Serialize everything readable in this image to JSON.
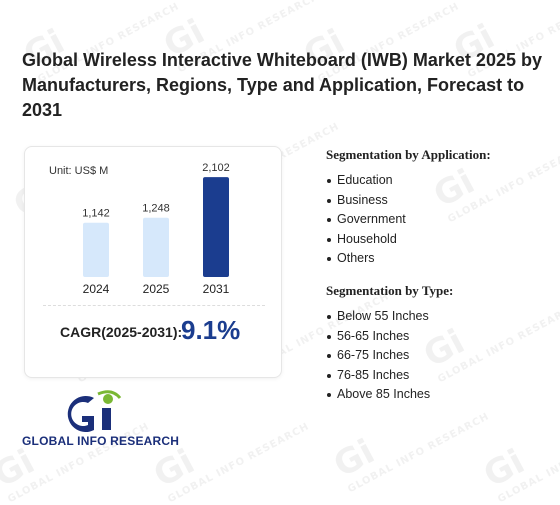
{
  "title": "Global Wireless Interactive Whiteboard (IWB) Market 2025 by Manufacturers, Regions, Type and Application, Forecast to 2031",
  "chart_card": {
    "unit_label": "Unit: US$ M",
    "cagr_label": "CAGR(2025-2031):",
    "cagr_value": "9.1%"
  },
  "chart_data": {
    "type": "bar",
    "categories": [
      "2024",
      "2025",
      "2031"
    ],
    "values": [
      1142,
      1248,
      2102
    ],
    "value_labels": [
      "1,142",
      "1,248",
      "2,102"
    ],
    "title": "",
    "xlabel": "",
    "ylabel": "",
    "ylim": [
      0,
      2400
    ],
    "grid": false,
    "bar_colors": [
      "#d6e8fb",
      "#d6e8fb",
      "#1b3d8f"
    ]
  },
  "segmentation_application": {
    "heading": "Segmentation by Application:",
    "items": [
      "Education",
      "Business",
      "Government",
      "Household",
      "Others"
    ]
  },
  "segmentation_type": {
    "heading": "Segmentation by Type:",
    "items": [
      "Below 55 Inches",
      "56-65 Inches",
      "66-75 Inches",
      "76-85 Inches",
      "Above 85 Inches"
    ]
  },
  "logo": {
    "text": "GLOBAL INFO RESEARCH",
    "colors": {
      "navy": "#1b2f7a",
      "green": "#7ab834"
    }
  },
  "watermark": {
    "text": "GLOBAL INFO RESEARCH",
    "mark": "Gi"
  }
}
